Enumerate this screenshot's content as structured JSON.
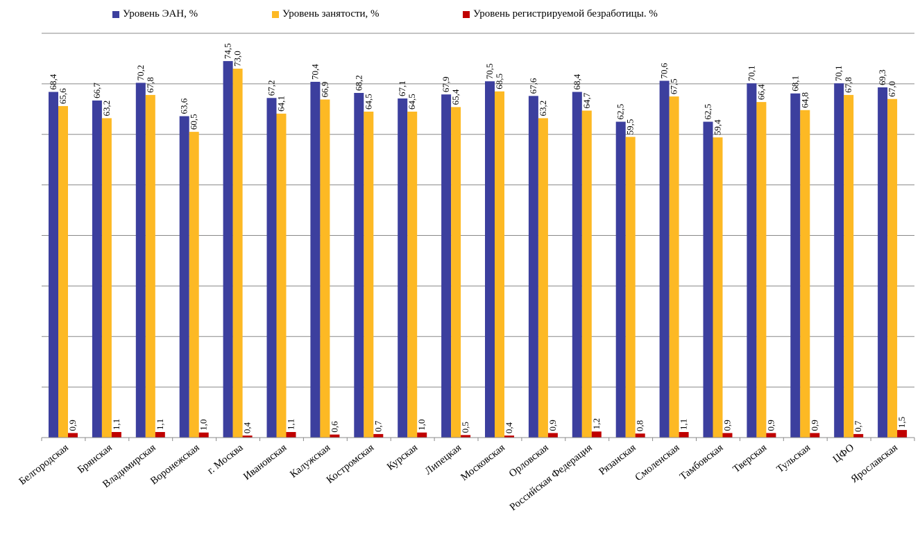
{
  "chart_data": {
    "type": "bar",
    "categories": [
      "Белгородская",
      "Брянская",
      "Владимирская",
      "Воронежская",
      "г. Москва",
      "Ивановская",
      "Калужская",
      "Костромская",
      "Курская",
      "Липецкая",
      "Московская",
      "Орловская",
      "Российская Федерация",
      "Рязанская",
      "Смоленская",
      "Тамбовская",
      "Тверская",
      "Тульская",
      "ЦФО",
      "Ярославская"
    ],
    "series": [
      {
        "name": "Уровень  ЭАН, %",
        "color": "#3c3f9e",
        "values": [
          68.4,
          66.7,
          70.2,
          63.6,
          74.5,
          67.2,
          70.4,
          68.2,
          67.1,
          67.9,
          70.5,
          67.6,
          68.4,
          62.5,
          70.6,
          62.5,
          70.1,
          68.1,
          70.1,
          69.3
        ],
        "labels": [
          "68,4",
          "66,7",
          "70,2",
          "63,6",
          "74,5",
          "67,2",
          "70,4",
          "68,2",
          "67,1",
          "67,9",
          "70,5",
          "67,6",
          "68,4",
          "62,5",
          "70,6",
          "62,5",
          "70,1",
          "68,1",
          "70,1",
          "69,3"
        ]
      },
      {
        "name": "Уровень занятости, %",
        "color": "#fdb924",
        "values": [
          65.6,
          63.2,
          67.8,
          60.5,
          73.0,
          64.1,
          66.9,
          64.5,
          64.5,
          65.4,
          68.5,
          63.2,
          64.7,
          59.5,
          67.5,
          59.4,
          66.4,
          64.8,
          67.8,
          67.0
        ],
        "labels": [
          "65,6",
          "63,2",
          "67,8",
          "60,5",
          "73,0",
          "64,1",
          "66,9",
          "64,5",
          "64,5",
          "65,4",
          "68,5",
          "63,2",
          "64,7",
          "59,5",
          "67,5",
          "59,4",
          "66,4",
          "64,8",
          "67,8",
          "67,0"
        ]
      },
      {
        "name": "Уровень регистрируемой  безработицы. %",
        "color": "#c00000",
        "values": [
          0.9,
          1.1,
          1.1,
          1.0,
          0.4,
          1.1,
          0.6,
          0.7,
          1.0,
          0.5,
          0.4,
          0.9,
          1.2,
          0.8,
          1.1,
          0.9,
          0.9,
          0.9,
          0.7,
          1.5
        ],
        "labels": [
          "0,9",
          "1,1",
          "1,1",
          "1,0",
          "0,4",
          "1,1",
          "0,6",
          "0,7",
          "1,0",
          "0,5",
          "0,4",
          "0,9",
          "1,2",
          "0,8",
          "1,1",
          "0,9",
          "0,9",
          "0,9",
          "0,7",
          "1,5"
        ]
      }
    ],
    "ylim": [
      0,
      80
    ],
    "grid": true,
    "legend_position": "top"
  }
}
